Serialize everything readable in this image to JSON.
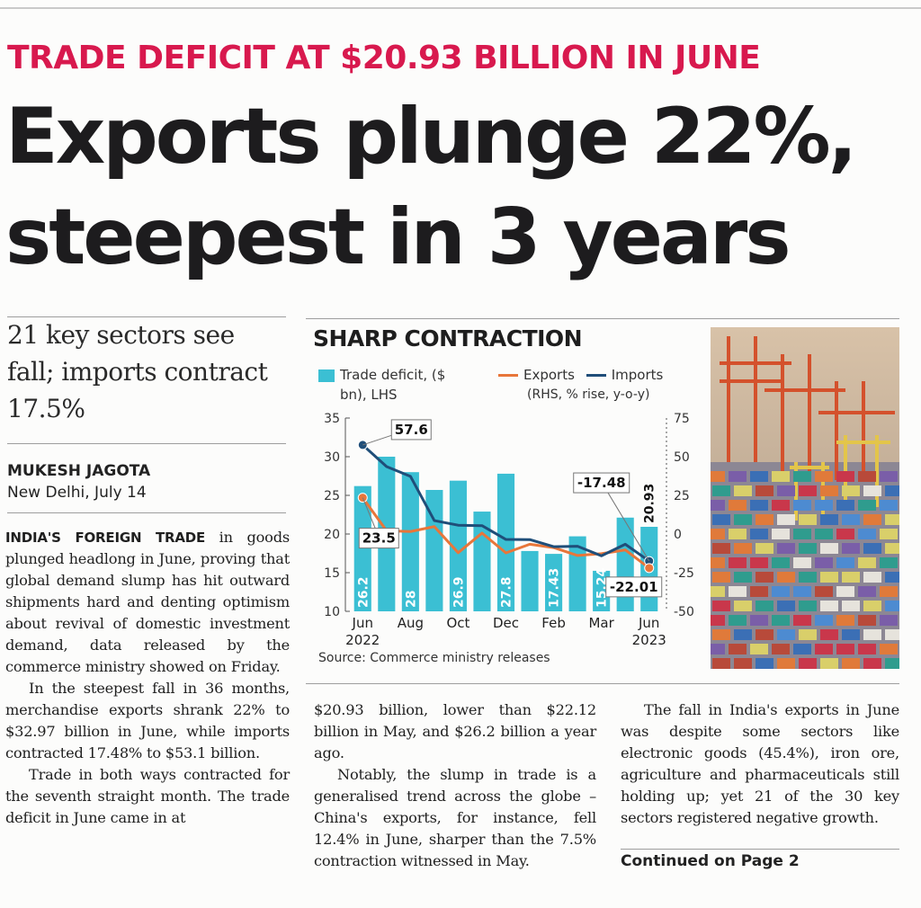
{
  "kicker": "TRADE DEFICIT AT $20.93 BILLION IN JUNE",
  "headline": "Exports plunge 22%, steepest in 3 years",
  "deck": "21 key sectors see fall; imports contract 17.5%",
  "byline": {
    "name": "MUKESH JAGOTA",
    "dateline": "New Delhi, July 14"
  },
  "body": {
    "lead_in": "INDIA'S FOREIGN TRADE",
    "p1": " in goods plunged headlong in June, proving that global demand slump has hit outward shipments hard and denting optimism about revival of domestic investment demand, data released by the commerce ministry showed on Friday.",
    "p2": "In the steepest fall in 36 months, merchandise exports shrank 22% to $32.97 billion in June, while imports contracted 17.48% to $53.1 billion.",
    "p3": "Trade in both ways contracted for the seventh straight month. The trade deficit in June came in at",
    "p4": "$20.93 billion, lower than $22.12 billion in May, and $26.2 billion a year ago.",
    "p5": "Notably, the slump in trade is a generalised trend across the globe – China's exports, for instance, fell 12.4% in June, sharper than the 7.5% contraction witnessed in May.",
    "p6": "The fall in India's exports in June was despite some sectors like electronic goods (45.4%), iron ore, agriculture and pharmaceuticals still holding up; yet 21 of the 30 key sectors registered negative growth.",
    "continued": "Continued on Page 2"
  },
  "chart_data": {
    "type": "bar+line",
    "title": "SHARP CONTRACTION",
    "legend": {
      "bar": "Trade deficit, ($ bn), LHS",
      "exports": "Exports",
      "imports": "Imports",
      "lines_units": "(RHS, % rise, y-o-y)"
    },
    "x_labels": [
      "Jun",
      "Aug",
      "Oct",
      "Dec",
      "Feb",
      "Mar",
      "Jun"
    ],
    "year_start": "2022",
    "year_end": "2023",
    "months": [
      "Jun 22",
      "Jul 22",
      "Aug 22",
      "Sep 22",
      "Oct 22",
      "Nov 22",
      "Dec 22",
      "Jan 23",
      "Feb 23",
      "Mar 23",
      "Apr 23",
      "May 23",
      "Jun 23"
    ],
    "deficit": [
      26.2,
      30.0,
      28.0,
      25.7,
      26.9,
      22.9,
      27.8,
      17.8,
      17.43,
      19.7,
      15.24,
      22.12,
      20.93
    ],
    "deficit_labels": [
      "26.2",
      "",
      "28",
      "",
      "26.9",
      "",
      "27.8",
      "",
      "17.43",
      "",
      "15.24",
      "",
      "20.93"
    ],
    "exports": [
      23.5,
      2.1,
      1.6,
      4.8,
      -12.1,
      0.6,
      -12.2,
      -6.6,
      -8.8,
      -13.9,
      -12.7,
      -10.3,
      -22.01
    ],
    "imports": [
      57.6,
      43.6,
      37.3,
      8.7,
      5.7,
      5.4,
      -3.5,
      -3.6,
      -8.2,
      -7.9,
      -14.1,
      -6.6,
      -17.48
    ],
    "left_axis": {
      "min": 10,
      "max": 35,
      "ticks": [
        "10",
        "15",
        "20",
        "25",
        "30",
        "35"
      ]
    },
    "right_axis": {
      "min": -50,
      "max": 75,
      "ticks": [
        "-50",
        "-25",
        "0",
        "25",
        "50",
        "75"
      ]
    },
    "callouts": {
      "imports_start": "57.6",
      "exports_start": "23.5",
      "imports_end": "-17.48",
      "exports_end": "-22.01"
    },
    "source": "Source: Commerce ministry releases",
    "colors": {
      "bar": "#3bbfd3",
      "exports": "#e8763a",
      "imports": "#1f4e79"
    }
  },
  "photo": {
    "icon": "container-port-photo"
  }
}
